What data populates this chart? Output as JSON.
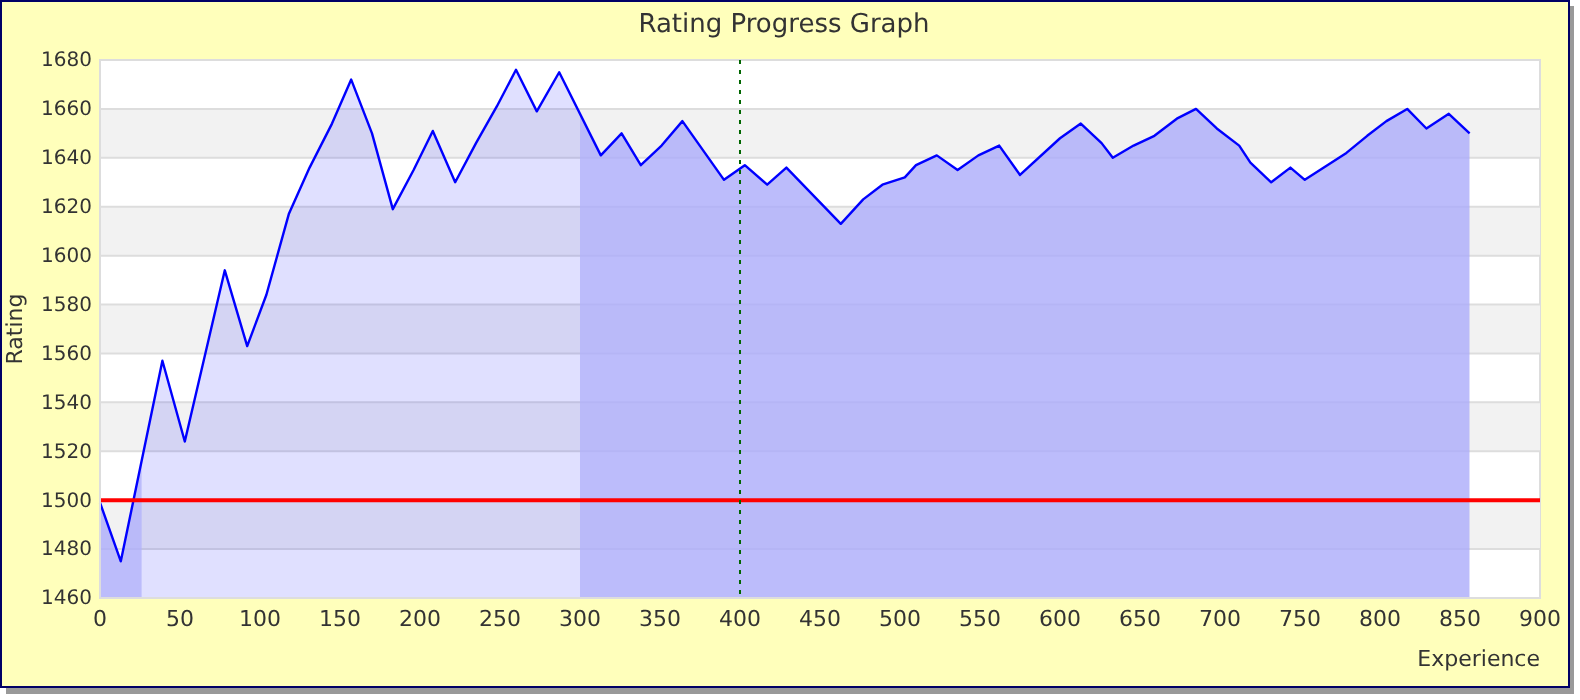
{
  "chart_data": {
    "type": "area",
    "title": "Rating Progress Graph",
    "xlabel": "Experience",
    "ylabel": "Rating",
    "xlim": [
      0,
      900
    ],
    "xticks": [
      0,
      50,
      100,
      150,
      200,
      250,
      300,
      350,
      400,
      450,
      500,
      550,
      600,
      650,
      700,
      750,
      800,
      850,
      900
    ],
    "ylim": [
      1460,
      1680
    ],
    "yticks": [
      1460,
      1480,
      1500,
      1520,
      1540,
      1560,
      1580,
      1600,
      1620,
      1640,
      1660,
      1680
    ],
    "grid": "y",
    "series": [
      {
        "color": "#0000ff",
        "x": [
          0,
          13,
          39,
          53,
          78,
          92,
          104,
          118,
          131,
          145,
          157,
          170,
          183,
          196,
          208,
          222,
          235,
          248,
          260,
          273,
          287,
          313,
          326,
          338,
          351,
          364,
          390,
          403,
          417,
          429,
          463,
          477,
          489,
          503,
          510,
          523,
          536,
          549,
          562,
          575,
          600,
          613,
          626,
          633,
          646,
          659,
          673,
          685,
          698,
          712,
          719,
          732,
          744,
          753,
          779,
          792,
          804,
          817,
          829,
          843,
          856
        ],
        "values": [
          1499,
          1475,
          1557,
          1524,
          1594,
          1563,
          1584,
          1617,
          1636,
          1654,
          1672,
          1650,
          1619,
          1635,
          1651,
          1630,
          1646,
          1661,
          1676,
          1659,
          1675,
          1641,
          1650,
          1637,
          1645,
          1655,
          1631,
          1637,
          1629,
          1636,
          1613,
          1623,
          1629,
          1632,
          1637,
          1641,
          1635,
          1641,
          1645,
          1633,
          1648,
          1654,
          1646,
          1640,
          1645,
          1649,
          1656,
          1660,
          1652,
          1645,
          1638,
          1630,
          1636,
          1631,
          1642,
          1649,
          1655,
          1660,
          1652,
          1658,
          1650
        ]
      }
    ],
    "bands": [
      {
        "axis": "x",
        "from": 0,
        "to": 26,
        "color": "#ccccfa"
      },
      {
        "axis": "x",
        "from": 300,
        "to": 856,
        "color": "#ccccfa"
      }
    ],
    "ref_lines": [
      {
        "axis": "y",
        "value": 1500,
        "color": "#ff0000",
        "line_style": "solid"
      },
      {
        "axis": "x",
        "value": 400,
        "color": "#006600",
        "line_style": "dotted"
      }
    ]
  }
}
